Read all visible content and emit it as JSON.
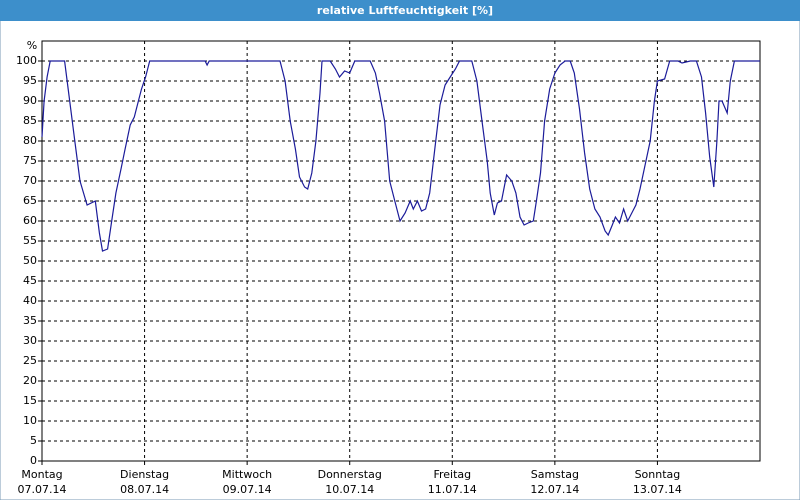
{
  "chart_data": {
    "type": "line",
    "title": "relative Luftfeuchtigkeit [%]",
    "y_label": "%",
    "xlim": [
      0,
      7
    ],
    "xticks": [
      {
        "value": 0,
        "label": "Montag"
      },
      {
        "value": 1,
        "label": "Dienstag"
      },
      {
        "value": 2,
        "label": "Mittwoch"
      },
      {
        "value": 3,
        "label": "Donnerstag"
      },
      {
        "value": 4,
        "label": "Freitag"
      },
      {
        "value": 5,
        "label": "Samstag"
      },
      {
        "value": 6,
        "label": "Sonntag"
      }
    ],
    "xtick_dates": [
      "07.07.14",
      "08.07.14",
      "09.07.14",
      "10.07.14",
      "11.07.14",
      "12.07.14",
      "13.07.14"
    ],
    "ylim": [
      0,
      105
    ],
    "yticks": [
      0,
      5,
      10,
      15,
      20,
      25,
      30,
      35,
      40,
      45,
      50,
      55,
      60,
      65,
      70,
      75,
      80,
      85,
      90,
      95,
      100
    ],
    "grid": true,
    "series": [
      {
        "color": "#1c1c9a",
        "x": [
          0,
          0.02,
          0.05,
          0.08,
          0.22,
          0.27,
          0.32,
          0.37,
          0.44,
          0.52,
          0.56,
          0.59,
          0.64,
          0.68,
          0.72,
          0.77,
          0.81,
          0.86,
          0.9,
          0.94,
          0.97,
          1.01,
          1.05,
          1.59,
          1.61,
          1.63,
          2.32,
          2.37,
          2.42,
          2.47,
          2.51,
          2.56,
          2.59,
          2.63,
          2.67,
          2.71,
          2.73,
          2.81,
          2.86,
          2.9,
          2.95,
          3.0,
          3.05,
          3.2,
          3.25,
          3.29,
          3.34,
          3.39,
          3.44,
          3.49,
          3.54,
          3.59,
          3.62,
          3.66,
          3.7,
          3.74,
          3.78,
          3.83,
          3.88,
          3.93,
          3.98,
          4.03,
          4.07,
          4.19,
          4.24,
          4.29,
          4.34,
          4.37,
          4.41,
          4.44,
          4.48,
          4.53,
          4.58,
          4.62,
          4.66,
          4.7,
          4.74,
          4.79,
          4.82,
          4.86,
          4.9,
          4.95,
          5.0,
          5.05,
          5.1,
          5.15,
          5.19,
          5.24,
          5.29,
          5.34,
          5.39,
          5.44,
          5.49,
          5.52,
          5.56,
          5.59,
          5.63,
          5.67,
          5.71,
          5.75,
          5.79,
          5.83,
          5.88,
          5.93,
          5.97,
          6.0,
          6.07,
          6.12,
          6.2,
          6.24,
          6.32,
          6.38,
          6.43,
          6.47,
          6.51,
          6.55,
          6.58,
          6.6,
          6.63,
          6.68,
          6.71,
          6.75,
          7.0
        ],
        "values": [
          81,
          90,
          96,
          100,
          100,
          90,
          80,
          70,
          64,
          65,
          57,
          52.5,
          53,
          60,
          67,
          73,
          78,
          84,
          86,
          90,
          93,
          96,
          100,
          100,
          99,
          100,
          100,
          95,
          85,
          78,
          71,
          68.5,
          68,
          72,
          80,
          92,
          100,
          100,
          98,
          96,
          97.5,
          97,
          100,
          100,
          97,
          92,
          85,
          70,
          65,
          60,
          62,
          65,
          63,
          65,
          62.5,
          63,
          67,
          78,
          89,
          94,
          96,
          98,
          100,
          100,
          95,
          85,
          75,
          67,
          61.5,
          64.5,
          65,
          71.5,
          70,
          67,
          61,
          59,
          59.5,
          60,
          65,
          72,
          85,
          93,
          97,
          99,
          100,
          100,
          97,
          88,
          77,
          68,
          63,
          61,
          57.5,
          56.5,
          59,
          61,
          59.5,
          63,
          60,
          62,
          64,
          68,
          74,
          80,
          90,
          95,
          95.5,
          100,
          100,
          99.5,
          100,
          100,
          96,
          87,
          76,
          68.5,
          80,
          90,
          90,
          87,
          95,
          100,
          100
        ]
      }
    ]
  }
}
